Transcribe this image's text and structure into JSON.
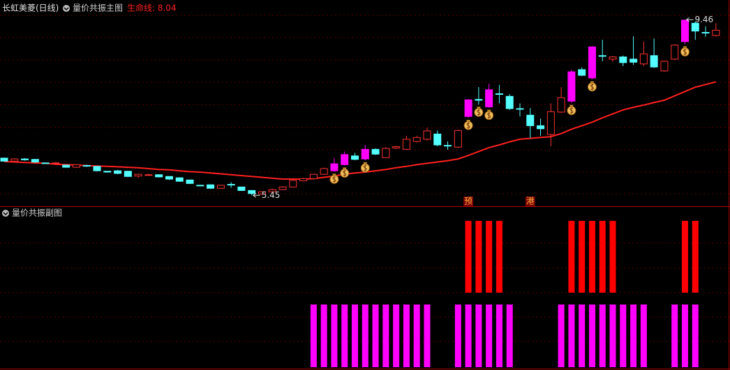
{
  "chart_data": [
    {
      "type": "candlestick",
      "title": "长虹美菱(日线)",
      "indicator": "量价共振主图",
      "lifeline": {
        "label": "生命线: 8.04",
        "color": "#ff2020",
        "values": [
          6.22,
          6.21,
          6.2,
          6.19,
          6.18,
          6.16,
          6.15,
          6.14,
          6.13,
          6.12,
          6.11,
          6.1,
          6.09,
          6.08,
          6.06,
          6.04,
          6.03,
          6.01,
          5.99,
          5.98,
          5.96,
          5.94,
          5.92,
          5.9,
          5.88,
          5.86,
          5.84,
          5.82,
          5.82,
          5.82,
          5.83,
          5.86,
          5.89,
          5.93,
          5.96,
          5.98,
          6.01,
          6.04,
          6.08,
          6.11,
          6.15,
          6.18,
          6.21,
          6.24,
          6.28,
          6.36,
          6.45,
          6.54,
          6.6,
          6.67,
          6.73,
          6.75,
          6.77,
          6.79,
          6.86,
          6.96,
          7.04,
          7.12,
          7.22,
          7.31,
          7.4,
          7.46,
          7.51,
          7.57,
          7.62,
          7.72,
          7.82,
          7.92,
          7.98,
          8.04
        ]
      },
      "open": [
        6.3,
        6.23,
        6.28,
        6.27,
        6.19,
        6.18,
        6.14,
        6.09,
        6.13,
        6.11,
        6.0,
        6.01,
        6.0,
        5.89,
        5.91,
        5.92,
        5.88,
        5.85,
        5.8,
        5.68,
        5.69,
        5.61,
        5.7,
        5.64,
        5.56,
        5.48,
        5.53,
        5.58,
        5.64,
        5.78,
        5.83,
        5.93,
        6.01,
        6.15,
        6.35,
        6.28,
        6.5,
        6.31,
        6.53,
        6.5,
        6.68,
        6.73,
        6.85,
        6.59,
        6.55,
        7.25,
        7.64,
        7.47,
        7.77,
        7.71,
        7.43,
        7.28,
        7.04,
        6.84,
        7.35,
        7.6,
        8.32,
        8.13,
        8.64,
        8.56,
        8.61,
        8.56,
        8.45,
        8.64,
        8.29,
        8.56,
        8.96,
        9.38,
        9.17,
        9.1
      ],
      "high": [
        6.31,
        6.3,
        6.3,
        6.28,
        6.2,
        6.21,
        6.15,
        6.16,
        6.15,
        6.12,
        6.0,
        6.03,
        6.01,
        5.94,
        5.94,
        5.93,
        5.89,
        5.86,
        5.81,
        5.69,
        5.7,
        5.69,
        5.75,
        5.65,
        5.57,
        5.54,
        5.6,
        5.66,
        5.8,
        5.85,
        5.94,
        6.08,
        6.3,
        6.45,
        6.42,
        6.6,
        6.52,
        6.55,
        6.58,
        6.81,
        6.81,
        6.99,
        6.93,
        6.68,
        6.95,
        7.65,
        7.92,
        8.0,
        7.97,
        7.76,
        7.55,
        7.44,
        7.2,
        7.55,
        7.92,
        8.32,
        8.37,
        8.86,
        9.0,
        8.63,
        8.64,
        9.08,
        8.96,
        9.03,
        8.53,
        8.9,
        9.46,
        9.42,
        9.31,
        9.38
      ],
      "low": [
        6.22,
        6.21,
        6.24,
        6.19,
        6.17,
        6.16,
        6.08,
        6.08,
        6.1,
        6.0,
        5.97,
        5.93,
        5.87,
        5.85,
        5.9,
        5.86,
        5.8,
        5.76,
        5.71,
        5.66,
        5.6,
        5.6,
        5.62,
        5.55,
        5.45,
        5.46,
        5.52,
        5.57,
        5.63,
        5.77,
        5.82,
        5.92,
        5.99,
        6.13,
        6.25,
        6.25,
        6.37,
        6.3,
        6.51,
        6.48,
        6.66,
        6.7,
        6.57,
        6.49,
        6.53,
        7.22,
        7.52,
        7.45,
        7.55,
        7.4,
        7.25,
        6.76,
        6.81,
        6.57,
        7.33,
        7.56,
        8.17,
        8.1,
        8.51,
        8.5,
        8.4,
        8.43,
        8.4,
        8.36,
        8.27,
        8.54,
        8.9,
        9.0,
        9.07,
        9.08
      ],
      "close": [
        6.23,
        6.28,
        6.26,
        6.21,
        6.18,
        6.19,
        6.09,
        6.15,
        6.12,
        6.01,
        5.98,
        5.95,
        5.88,
        5.93,
        5.92,
        5.87,
        5.82,
        5.77,
        5.72,
        5.67,
        5.61,
        5.68,
        5.69,
        5.56,
        5.49,
        5.53,
        5.58,
        5.64,
        5.79,
        5.83,
        5.93,
        6.06,
        6.17,
        6.38,
        6.27,
        6.5,
        6.39,
        6.52,
        6.56,
        6.73,
        6.77,
        6.92,
        6.6,
        6.58,
        6.93,
        7.63,
        7.62,
        7.86,
        7.76,
        7.43,
        7.42,
        7.04,
        6.97,
        7.36,
        7.68,
        8.27,
        8.19,
        8.84,
        8.63,
        8.61,
        8.48,
        8.49,
        8.68,
        8.38,
        8.51,
        8.88,
        9.45,
        9.2,
        9.16,
        9.22
      ],
      "ylim": [
        5.2,
        9.91
      ],
      "colors": {
        "up": "#ff3232",
        "down": "#54ffff",
        "signal": "#ff00ff"
      },
      "signals": [
        32,
        33,
        35,
        45,
        46,
        47,
        55,
        57,
        66
      ],
      "markers": [
        {
          "index": 45,
          "label": "预"
        },
        {
          "index": 51,
          "label": "港"
        }
      ],
      "extremes": [
        {
          "index": 66,
          "value": 9.46
        },
        {
          "index": 24,
          "value": 5.45
        }
      ]
    },
    {
      "type": "bar",
      "title": "量价共振副图",
      "series": [
        {
          "color": "#ff0000",
          "values": [
            null,
            null,
            null,
            null,
            null,
            null,
            null,
            null,
            null,
            null,
            null,
            null,
            null,
            null,
            null,
            null,
            null,
            null,
            null,
            null,
            null,
            null,
            null,
            null,
            null,
            null,
            null,
            null,
            null,
            null,
            null,
            null,
            null,
            null,
            null,
            null,
            null,
            null,
            null,
            null,
            null,
            null,
            null,
            null,
            null,
            1,
            1,
            1,
            1,
            null,
            null,
            null,
            null,
            null,
            null,
            1,
            1,
            1,
            1,
            1,
            null,
            null,
            null,
            null,
            null,
            null,
            1,
            1,
            null,
            null
          ]
        },
        {
          "color": "#ff00ff",
          "values": [
            null,
            null,
            null,
            null,
            null,
            null,
            null,
            null,
            null,
            null,
            null,
            null,
            null,
            null,
            null,
            null,
            null,
            null,
            null,
            null,
            null,
            null,
            null,
            null,
            null,
            null,
            null,
            null,
            null,
            null,
            1,
            1,
            1,
            1,
            1,
            1,
            1,
            1,
            1,
            1,
            1,
            1,
            null,
            null,
            1,
            1,
            1,
            1,
            1,
            1,
            null,
            null,
            null,
            null,
            1,
            1,
            1,
            1,
            1,
            1,
            1,
            1,
            1,
            null,
            null,
            1,
            1,
            1,
            null,
            null
          ]
        }
      ]
    }
  ]
}
